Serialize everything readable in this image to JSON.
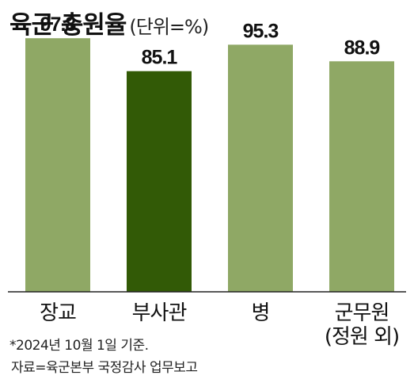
{
  "title": "육군 충원율",
  "unit": "(단위=%)",
  "chart_data": {
    "type": "bar",
    "title": "육군 충원율",
    "unit": "(단위=%)",
    "categories": [
      {
        "line1": "장교",
        "line2": ""
      },
      {
        "line1": "부사관",
        "line2": ""
      },
      {
        "line1": "병",
        "line2": ""
      },
      {
        "line1": "군무원",
        "line2": "(정원 외)"
      }
    ],
    "values": [
      97.8,
      85.1,
      95.3,
      88.9
    ],
    "value_labels": [
      "97.8",
      "85.1",
      "95.3",
      "88.9"
    ],
    "colors": [
      "#8fa865",
      "#325a06",
      "#8fa865",
      "#8fa865"
    ],
    "ylim": [
      0,
      100
    ],
    "grid": false,
    "legend": "none"
  },
  "footnote": "*2024년 10월 1일 기준.",
  "source": "자료=육군본부 국정감사 업무보고"
}
